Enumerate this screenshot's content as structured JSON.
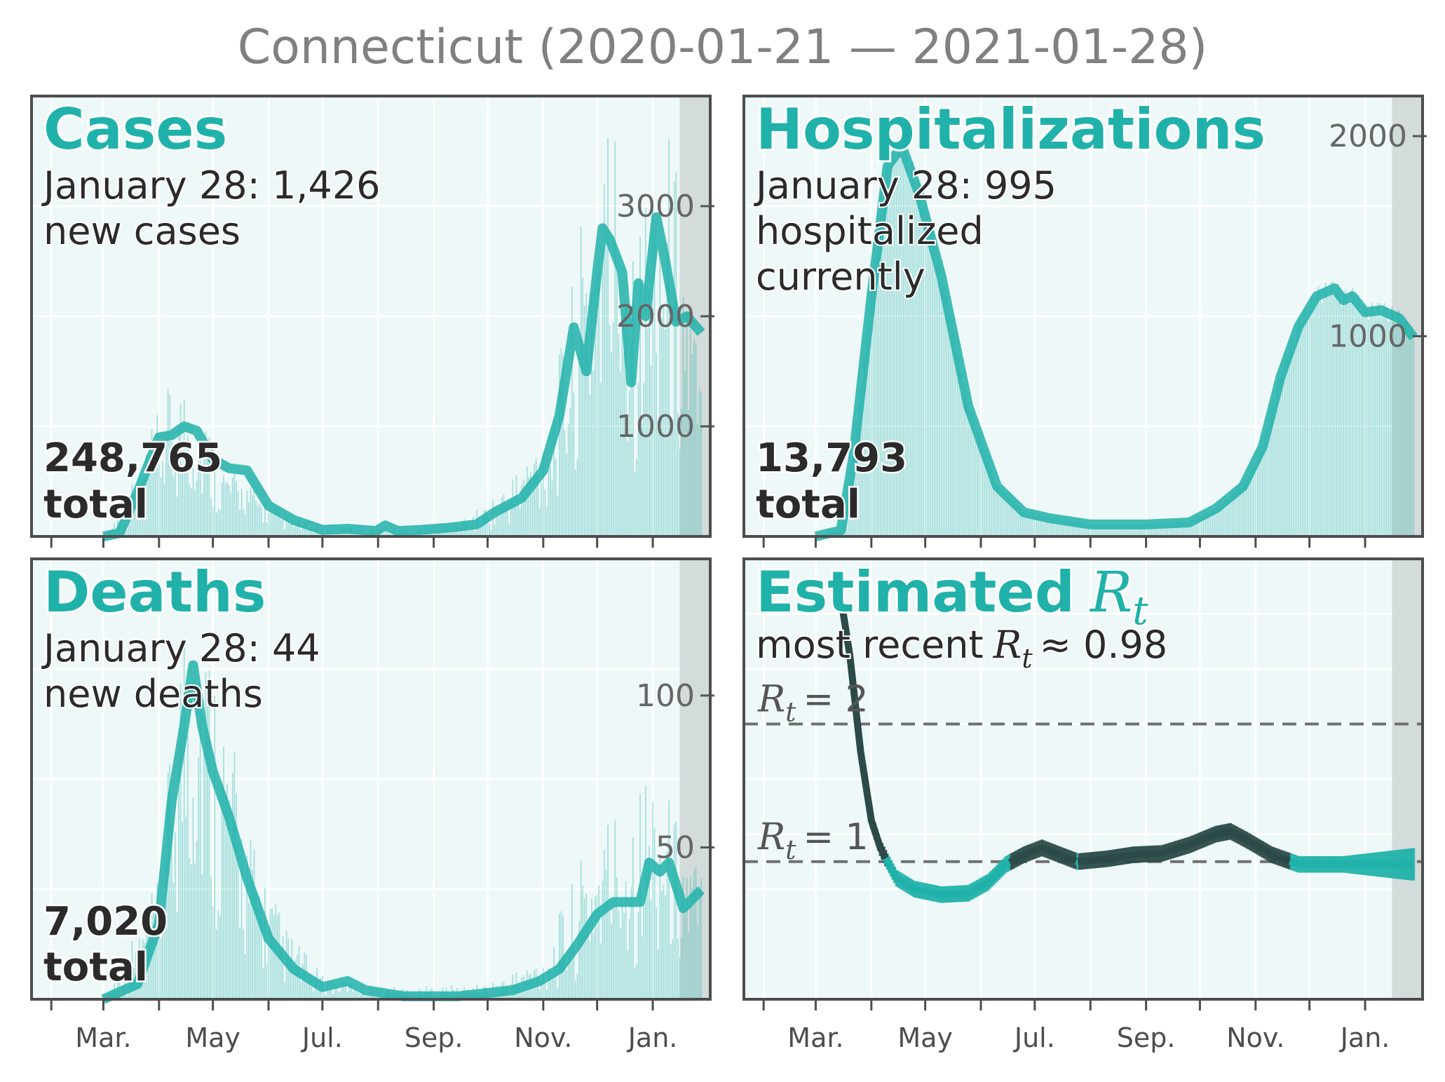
{
  "title": "Connecticut (2020-01-21 — 2021-01-28)",
  "x_tick_labels": [
    "Mar.",
    "May",
    "Jul.",
    "Sep.",
    "Nov.",
    "Jan."
  ],
  "colors": {
    "accent": "#20b2aa",
    "panel_bg": "#eef8f8",
    "recent_shade": "#d3dcdb",
    "rt_dark": "#2b4a48"
  },
  "panels": {
    "cases": {
      "title": "Cases",
      "line1": "January 28: 1,426",
      "line2": "new cases",
      "total": "248,765",
      "total_label": "total"
    },
    "hosp": {
      "title": "Hospitalizations",
      "line1": "January 28: 995",
      "line2": "hospitalized",
      "line3": "currently",
      "total": "13,793",
      "total_label": "total"
    },
    "deaths": {
      "title": "Deaths",
      "line1": "January 28: 44",
      "line2": "new deaths",
      "total": "7,020",
      "total_label": "total"
    },
    "rt": {
      "title": "Estimated",
      "title_symbol": "R",
      "title_sub": "t",
      "subtitle_prefix": "most recent",
      "subtitle_sym": "R",
      "subtitle_sub": "t",
      "subtitle_suffix": "≈ 0.98",
      "ref2_sym": "R",
      "ref2_sub": "t",
      "ref2_val": "= 2",
      "ref1_sym": "R",
      "ref1_sub": "t",
      "ref1_val": "= 1"
    }
  },
  "chart_data": [
    {
      "type": "bar",
      "name": "cases",
      "x_range": [
        "2020-01-21",
        "2021-02-02"
      ],
      "ylim": [
        0,
        4000
      ],
      "yticks": [
        1000,
        2000,
        3000
      ],
      "shaded_from": "2021-01-16",
      "avg_points": [
        [
          "2020-03-01",
          0
        ],
        [
          "2020-03-10",
          30
        ],
        [
          "2020-03-20",
          400
        ],
        [
          "2020-04-01",
          900
        ],
        [
          "2020-04-08",
          920
        ],
        [
          "2020-04-15",
          1000
        ],
        [
          "2020-04-22",
          960
        ],
        [
          "2020-05-01",
          700
        ],
        [
          "2020-05-10",
          620
        ],
        [
          "2020-05-20",
          600
        ],
        [
          "2020-06-01",
          280
        ],
        [
          "2020-06-15",
          150
        ],
        [
          "2020-07-01",
          60
        ],
        [
          "2020-07-15",
          70
        ],
        [
          "2020-07-31",
          50
        ],
        [
          "2020-08-05",
          100
        ],
        [
          "2020-08-12",
          50
        ],
        [
          "2020-08-25",
          60
        ],
        [
          "2020-09-10",
          80
        ],
        [
          "2020-09-25",
          110
        ],
        [
          "2020-10-05",
          220
        ],
        [
          "2020-10-20",
          350
        ],
        [
          "2020-11-01",
          600
        ],
        [
          "2020-11-10",
          1100
        ],
        [
          "2020-11-18",
          1900
        ],
        [
          "2020-11-25",
          1500
        ],
        [
          "2020-12-01",
          2400
        ],
        [
          "2020-12-04",
          2800
        ],
        [
          "2020-12-08",
          2700
        ],
        [
          "2020-12-15",
          2400
        ],
        [
          "2020-12-20",
          1400
        ],
        [
          "2020-12-24",
          2300
        ],
        [
          "2020-12-28",
          2000
        ],
        [
          "2021-01-03",
          2900
        ],
        [
          "2021-01-08",
          2500
        ],
        [
          "2021-01-14",
          1950
        ],
        [
          "2021-01-20",
          2000
        ],
        [
          "2021-01-28",
          1850
        ]
      ],
      "daily_points": [
        [
          "2020-03-01",
          0
        ],
        [
          "2020-03-20",
          600
        ],
        [
          "2020-04-05",
          1350
        ],
        [
          "2020-04-20",
          1550
        ],
        [
          "2020-05-05",
          700
        ],
        [
          "2020-05-20",
          500
        ],
        [
          "2020-06-10",
          200
        ],
        [
          "2020-07-01",
          80
        ],
        [
          "2020-07-20",
          100
        ],
        [
          "2020-08-10",
          60
        ],
        [
          "2020-09-10",
          120
        ],
        [
          "2020-10-01",
          300
        ],
        [
          "2020-10-20",
          700
        ],
        [
          "2020-11-05",
          1200
        ],
        [
          "2020-11-20",
          2600
        ],
        [
          "2020-12-01",
          4000
        ],
        [
          "2020-12-15",
          4000
        ],
        [
          "2020-12-25",
          3000
        ],
        [
          "2021-01-05",
          4000
        ],
        [
          "2021-01-15",
          3500
        ],
        [
          "2021-01-28",
          1426
        ]
      ]
    },
    {
      "type": "bar",
      "name": "hospitalizations",
      "x_range": [
        "2020-01-21",
        "2021-02-02"
      ],
      "ylim": [
        0,
        2200
      ],
      "yticks": [
        1000,
        2000
      ],
      "shaded_from": "2021-01-16",
      "avg_points": [
        [
          "2020-03-01",
          0
        ],
        [
          "2020-03-15",
          30
        ],
        [
          "2020-03-22",
          400
        ],
        [
          "2020-04-01",
          1200
        ],
        [
          "2020-04-10",
          1850
        ],
        [
          "2020-04-18",
          1950
        ],
        [
          "2020-04-28",
          1700
        ],
        [
          "2020-05-10",
          1300
        ],
        [
          "2020-05-25",
          650
        ],
        [
          "2020-06-10",
          250
        ],
        [
          "2020-06-25",
          120
        ],
        [
          "2020-07-10",
          90
        ],
        [
          "2020-08-01",
          60
        ],
        [
          "2020-09-01",
          60
        ],
        [
          "2020-09-25",
          70
        ],
        [
          "2020-10-10",
          140
        ],
        [
          "2020-10-25",
          250
        ],
        [
          "2020-11-05",
          450
        ],
        [
          "2020-11-15",
          800
        ],
        [
          "2020-11-25",
          1050
        ],
        [
          "2020-12-05",
          1200
        ],
        [
          "2020-12-15",
          1240
        ],
        [
          "2020-12-20",
          1180
        ],
        [
          "2020-12-25",
          1200
        ],
        [
          "2021-01-01",
          1120
        ],
        [
          "2021-01-10",
          1130
        ],
        [
          "2021-01-20",
          1090
        ],
        [
          "2021-01-28",
          995
        ]
      ]
    },
    {
      "type": "bar",
      "name": "deaths",
      "x_range": [
        "2020-01-21",
        "2021-02-02"
      ],
      "ylim": [
        0,
        145
      ],
      "yticks": [
        50,
        100
      ],
      "shaded_from": "2021-01-16",
      "avg_points": [
        [
          "2020-03-01",
          0
        ],
        [
          "2020-03-20",
          5
        ],
        [
          "2020-04-01",
          25
        ],
        [
          "2020-04-08",
          65
        ],
        [
          "2020-04-15",
          90
        ],
        [
          "2020-04-20",
          110
        ],
        [
          "2020-04-25",
          90
        ],
        [
          "2020-05-01",
          75
        ],
        [
          "2020-05-10",
          60
        ],
        [
          "2020-05-20",
          40
        ],
        [
          "2020-06-01",
          20
        ],
        [
          "2020-06-15",
          10
        ],
        [
          "2020-07-01",
          4
        ],
        [
          "2020-07-15",
          6
        ],
        [
          "2020-07-25",
          3
        ],
        [
          "2020-08-15",
          1
        ],
        [
          "2020-09-15",
          1
        ],
        [
          "2020-10-15",
          3
        ],
        [
          "2020-10-30",
          6
        ],
        [
          "2020-11-10",
          10
        ],
        [
          "2020-11-20",
          18
        ],
        [
          "2020-12-01",
          28
        ],
        [
          "2020-12-10",
          32
        ],
        [
          "2020-12-25",
          32
        ],
        [
          "2020-12-30",
          45
        ],
        [
          "2021-01-05",
          42
        ],
        [
          "2021-01-10",
          45
        ],
        [
          "2021-01-18",
          30
        ],
        [
          "2021-01-28",
          36
        ]
      ],
      "daily_points": [
        [
          "2020-03-01",
          0
        ],
        [
          "2020-04-01",
          40
        ],
        [
          "2020-04-15",
          140
        ],
        [
          "2020-04-22",
          145
        ],
        [
          "2020-05-05",
          110
        ],
        [
          "2020-05-20",
          60
        ],
        [
          "2020-06-10",
          25
        ],
        [
          "2020-07-01",
          8
        ],
        [
          "2020-08-01",
          4
        ],
        [
          "2020-10-01",
          5
        ],
        [
          "2020-11-01",
          15
        ],
        [
          "2020-12-01",
          60
        ],
        [
          "2021-01-01",
          80
        ],
        [
          "2021-01-28",
          44
        ]
      ]
    },
    {
      "type": "line",
      "name": "rt",
      "x_range": [
        "2020-01-21",
        "2021-02-02"
      ],
      "ylim": [
        0,
        3.2
      ],
      "ref_lines": [
        1,
        2
      ],
      "shaded_from": "2021-01-16",
      "series": [
        {
          "points": [
            [
              "2020-03-14",
              3.0
            ],
            [
              "2020-03-20",
              2.5
            ],
            [
              "2020-03-26",
              1.8
            ],
            [
              "2020-04-01",
              1.3
            ],
            [
              "2020-04-06",
              1.1
            ],
            [
              "2020-04-10",
              1.0
            ],
            [
              "2020-04-15",
              0.88
            ],
            [
              "2020-04-25",
              0.8
            ],
            [
              "2020-05-10",
              0.76
            ],
            [
              "2020-05-25",
              0.77
            ],
            [
              "2020-06-05",
              0.85
            ],
            [
              "2020-06-15",
              0.98
            ],
            [
              "2020-06-25",
              1.05
            ],
            [
              "2020-07-05",
              1.1
            ],
            [
              "2020-07-15",
              1.05
            ],
            [
              "2020-07-25",
              1.0
            ],
            [
              "2020-08-10",
              1.02
            ],
            [
              "2020-08-25",
              1.05
            ],
            [
              "2020-09-10",
              1.06
            ],
            [
              "2020-09-25",
              1.12
            ],
            [
              "2020-10-10",
              1.2
            ],
            [
              "2020-10-18",
              1.22
            ],
            [
              "2020-10-28",
              1.15
            ],
            [
              "2020-11-10",
              1.05
            ],
            [
              "2020-11-25",
              0.98
            ],
            [
              "2020-12-15",
              0.98
            ],
            [
              "2021-01-05",
              0.98
            ],
            [
              "2021-01-28",
              0.98
            ]
          ]
        }
      ]
    }
  ]
}
